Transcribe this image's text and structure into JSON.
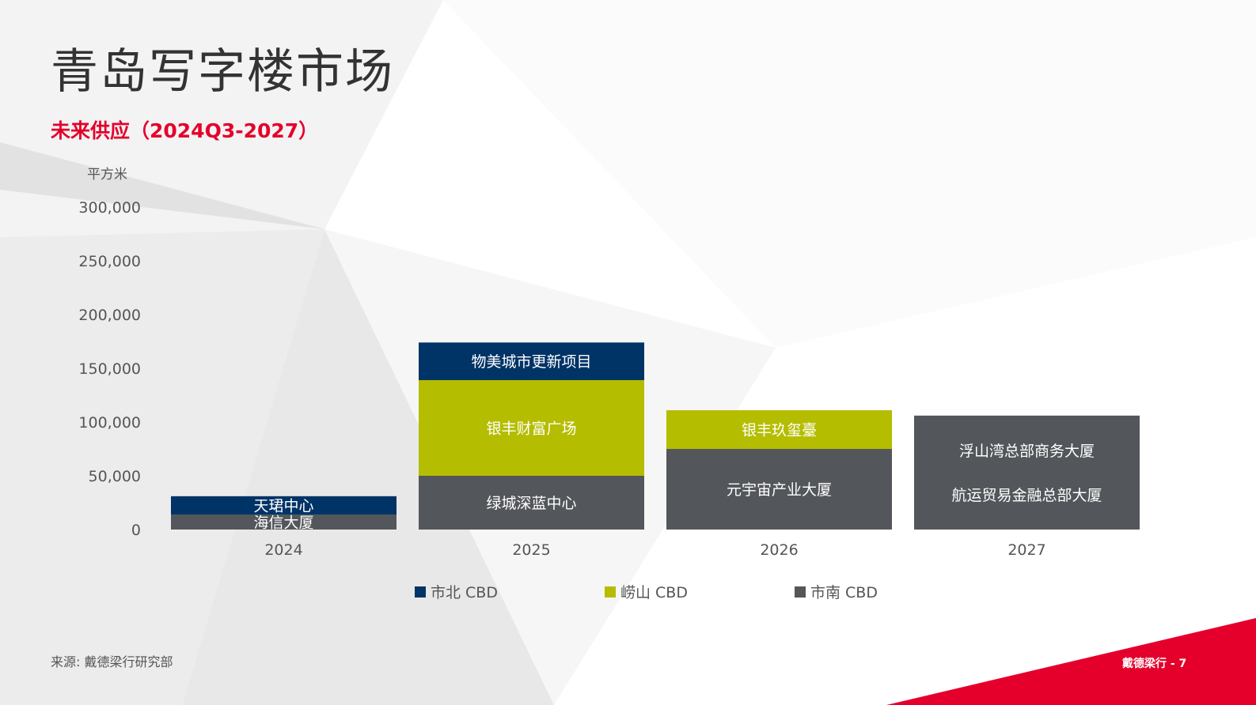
{
  "page": {
    "title": "青岛写字楼市场",
    "subtitle": "未来供应（2024Q3-2027）",
    "source": "来源: 戴德梁行研究部",
    "footer": "戴德梁行 - 7",
    "accent_color": "#e4002b"
  },
  "chart_data": {
    "type": "bar",
    "stacked": true,
    "ylabel": "平方米",
    "ylim": [
      0,
      300000
    ],
    "yticks": [
      "300,000",
      "250,000",
      "200,000",
      "150,000",
      "100,000",
      "50,000",
      "0"
    ],
    "ytick_values": [
      300000,
      250000,
      200000,
      150000,
      100000,
      50000,
      0
    ],
    "categories": [
      "2024",
      "2025",
      "2026",
      "2027"
    ],
    "legend_position": "bottom",
    "grid": false,
    "series": [
      {
        "name": "市南 CBD",
        "color": "#53565a",
        "values": [
          14000,
          50000,
          75000,
          106000
        ]
      },
      {
        "name": "崂山 CBD",
        "color": "#b5bd00",
        "values": [
          0,
          89000,
          36000,
          0
        ]
      },
      {
        "name": "市北 CBD",
        "color": "#003366",
        "values": [
          17000,
          35000,
          0,
          0
        ]
      }
    ],
    "segment_labels": [
      [
        [
          "海信大厦"
        ],
        [
          "绿城深蓝中心"
        ],
        [
          "元宇宙产业大厦"
        ],
        [
          "浮山湾总部商务大厦",
          "航运贸易金融总部大厦"
        ]
      ],
      [
        [],
        [
          "银丰财富广场"
        ],
        [
          "银丰玖玺臺"
        ],
        []
      ],
      [
        [
          "天珺中心"
        ],
        [
          "物美城市更新项目"
        ],
        [],
        []
      ]
    ]
  }
}
